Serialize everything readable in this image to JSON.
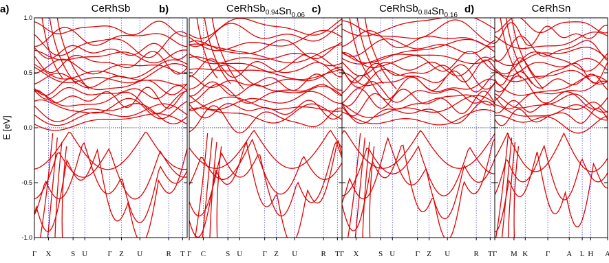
{
  "chart_data": {
    "type": "line",
    "ylabel": "E [eV]",
    "ylim": [
      -1.0,
      1.0
    ],
    "yticks": [
      -1.0,
      -0.5,
      0.0,
      0.5,
      1.0
    ],
    "ytick_labels": [
      "-1.0",
      "-0.5",
      "0.0",
      "0.5",
      "1.0"
    ],
    "fermi_level": 0.0,
    "line_color": "#e00000",
    "vline_color": "#4a4aff",
    "panels": [
      {
        "letter": "a)",
        "title_parts": [
          {
            "text": "CeRhSb",
            "sub": ""
          }
        ],
        "kpoints": [
          "Γ",
          "X",
          "S",
          "U",
          "Γ",
          "Z",
          "U",
          "R",
          "T"
        ],
        "kpos": [
          0,
          0.092,
          0.253,
          0.33,
          0.494,
          0.57,
          0.69,
          0.879,
          0.97
        ],
        "bands_above": [
          0.06,
          0.12,
          0.15,
          0.18,
          0.24,
          0.27,
          0.32,
          0.38,
          0.43,
          0.47,
          0.51,
          0.55,
          0.6,
          0.65,
          0.7,
          0.75,
          0.82,
          0.9
        ],
        "bands_below": [
          -0.03,
          -0.2,
          -0.32,
          -0.42
        ]
      },
      {
        "letter": "b)",
        "title_parts": [
          {
            "text": "CeRhSb",
            "sub": "0.94"
          },
          {
            "text": "Sn",
            "sub": "0.06"
          }
        ],
        "kpoints": [
          "Γ",
          "C",
          "S",
          "U",
          "Γ",
          "Z",
          "U",
          "R",
          "T"
        ],
        "kpos": [
          0,
          0.092,
          0.253,
          0.33,
          0.494,
          0.57,
          0.69,
          0.879,
          0.97
        ],
        "bands_above": [
          0.07,
          0.12,
          0.17,
          0.2,
          0.26,
          0.3,
          0.35,
          0.41,
          0.45,
          0.5,
          0.54,
          0.58,
          0.63,
          0.68,
          0.72,
          0.78,
          0.85,
          0.92
        ],
        "bands_below": [
          -0.02,
          -0.18,
          -0.3,
          -0.4
        ]
      },
      {
        "letter": "c)",
        "title_parts": [
          {
            "text": "CeRhSb",
            "sub": "0.84"
          },
          {
            "text": "Sn",
            "sub": "0.16"
          }
        ],
        "kpoints": [
          "Γ",
          "X",
          "S",
          "U",
          "Γ",
          "Z",
          "U",
          "R",
          "T"
        ],
        "kpos": [
          0,
          0.092,
          0.253,
          0.33,
          0.494,
          0.57,
          0.69,
          0.879,
          0.97
        ],
        "bands_above": [
          0.08,
          0.13,
          0.18,
          0.22,
          0.27,
          0.31,
          0.37,
          0.42,
          0.47,
          0.51,
          0.55,
          0.6,
          0.64,
          0.7,
          0.74,
          0.8,
          0.87,
          0.94
        ],
        "bands_below": [
          -0.02,
          -0.17,
          -0.28,
          -0.38
        ]
      },
      {
        "letter": "d)",
        "title_parts": [
          {
            "text": "CeRhSn",
            "sub": ""
          }
        ],
        "kpoints": [
          "Γ",
          "M",
          "K",
          "Γ",
          "A",
          "L",
          "H",
          "A"
        ],
        "kpos": [
          0,
          0.17,
          0.27,
          0.47,
          0.66,
          0.775,
          0.85,
          1.0
        ],
        "bands_above": [
          0.05,
          0.1,
          0.14,
          0.19,
          0.23,
          0.28,
          0.33,
          0.37,
          0.42,
          0.47,
          0.52,
          0.56,
          0.61,
          0.66,
          0.72,
          0.78,
          0.85,
          0.93
        ],
        "bands_below": [
          -0.05,
          -0.22,
          -0.4
        ]
      }
    ]
  }
}
